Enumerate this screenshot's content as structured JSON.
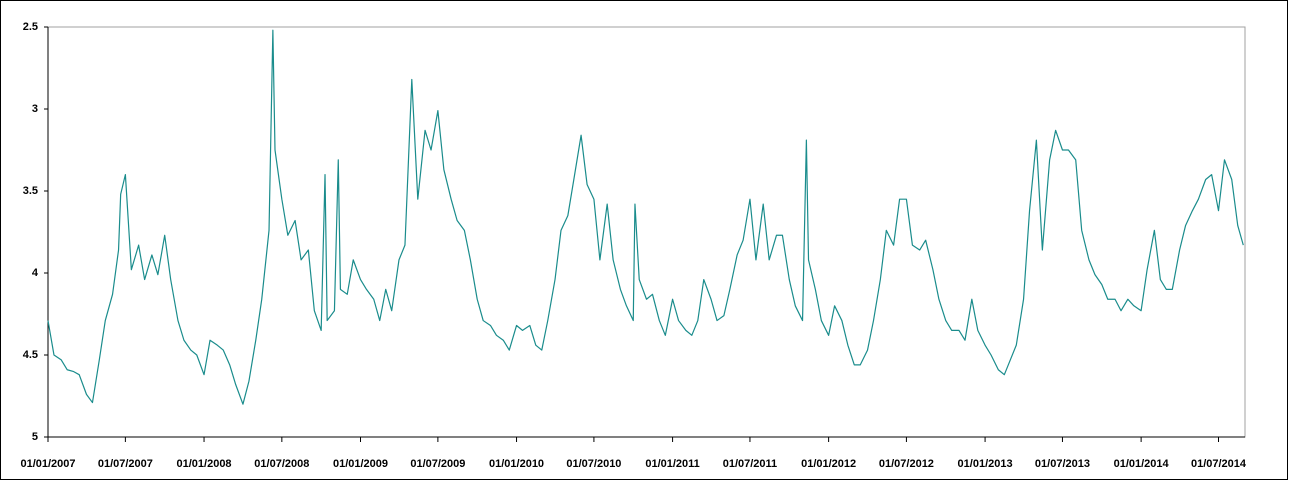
{
  "chart_data": {
    "type": "line",
    "x": [
      "01/01/2007",
      "15/01/2007",
      "01/02/2007",
      "15/02/2007",
      "01/03/2007",
      "15/03/2007",
      "01/04/2007",
      "15/04/2007",
      "01/05/2007",
      "15/05/2007",
      "01/06/2007",
      "15/06/2007",
      "20/06/2007",
      "01/07/2007",
      "15/07/2007",
      "01/08/2007",
      "15/08/2007",
      "01/09/2007",
      "15/09/2007",
      "01/10/2007",
      "15/10/2007",
      "01/11/2007",
      "15/11/2007",
      "01/12/2007",
      "15/12/2007",
      "01/01/2008",
      "15/01/2008",
      "01/02/2008",
      "15/02/2008",
      "01/03/2008",
      "15/03/2008",
      "01/04/2008",
      "15/04/2008",
      "01/05/2008",
      "15/05/2008",
      "01/06/2008",
      "10/06/2008",
      "15/06/2008",
      "01/07/2008",
      "15/07/2008",
      "01/08/2008",
      "15/08/2008",
      "01/09/2008",
      "15/09/2008",
      "01/10/2008",
      "10/10/2008",
      "15/10/2008",
      "01/11/2008",
      "10/11/2008",
      "15/11/2008",
      "01/12/2008",
      "15/12/2008",
      "01/01/2009",
      "15/01/2009",
      "01/02/2009",
      "15/02/2009",
      "01/03/2009",
      "15/03/2009",
      "01/04/2009",
      "15/04/2009",
      "01/05/2009",
      "15/05/2009",
      "01/06/2009",
      "15/06/2009",
      "01/07/2009",
      "15/07/2009",
      "01/08/2009",
      "15/08/2009",
      "01/09/2009",
      "15/09/2009",
      "01/10/2009",
      "15/10/2009",
      "01/11/2009",
      "15/11/2009",
      "01/12/2009",
      "15/12/2009",
      "01/01/2010",
      "15/01/2010",
      "01/02/2010",
      "15/02/2010",
      "01/03/2010",
      "15/03/2010",
      "01/04/2010",
      "15/04/2010",
      "01/05/2010",
      "15/05/2010",
      "01/06/2010",
      "15/06/2010",
      "01/07/2010",
      "15/07/2010",
      "01/08/2010",
      "15/08/2010",
      "01/09/2010",
      "15/09/2010",
      "01/10/2010",
      "05/10/2010",
      "15/10/2010",
      "01/11/2010",
      "15/11/2010",
      "01/12/2010",
      "15/12/2010",
      "01/01/2011",
      "15/01/2011",
      "01/02/2011",
      "15/02/2011",
      "01/03/2011",
      "15/03/2011",
      "01/04/2011",
      "15/04/2011",
      "01/05/2011",
      "15/05/2011",
      "01/06/2011",
      "15/06/2011",
      "01/07/2011",
      "15/07/2011",
      "01/08/2011",
      "15/08/2011",
      "01/09/2011",
      "15/09/2011",
      "01/10/2011",
      "15/10/2011",
      "01/11/2011",
      "10/11/2011",
      "15/11/2011",
      "01/12/2011",
      "15/12/2011",
      "01/01/2012",
      "15/01/2012",
      "01/02/2012",
      "15/02/2012",
      "01/03/2012",
      "15/03/2012",
      "01/04/2012",
      "15/04/2012",
      "01/05/2012",
      "15/05/2012",
      "01/06/2012",
      "15/06/2012",
      "01/07/2012",
      "15/07/2012",
      "01/08/2012",
      "15/08/2012",
      "01/09/2012",
      "15/09/2012",
      "01/10/2012",
      "15/10/2012",
      "01/11/2012",
      "15/11/2012",
      "01/12/2012",
      "15/12/2012",
      "01/01/2013",
      "15/01/2013",
      "01/02/2013",
      "15/02/2013",
      "01/03/2013",
      "15/03/2013",
      "01/04/2013",
      "15/04/2013",
      "01/05/2013",
      "15/05/2013",
      "01/06/2013",
      "15/06/2013",
      "01/07/2013",
      "15/07/2013",
      "01/08/2013",
      "15/08/2013",
      "01/09/2013",
      "15/09/2013",
      "01/10/2013",
      "15/10/2013",
      "01/11/2013",
      "15/11/2013",
      "01/12/2013",
      "15/12/2013",
      "01/01/2014",
      "15/01/2014",
      "01/02/2014",
      "15/02/2014",
      "01/03/2014",
      "15/03/2014",
      "01/04/2014",
      "15/04/2014",
      "01/05/2014",
      "15/05/2014",
      "01/06/2014",
      "15/06/2014",
      "01/07/2014",
      "15/07/2014",
      "01/08/2014",
      "15/08/2014",
      "28/08/2014"
    ],
    "values": [
      4.29,
      4.5,
      4.53,
      4.59,
      4.6,
      4.62,
      4.74,
      4.79,
      4.53,
      4.29,
      4.13,
      3.86,
      3.52,
      3.4,
      3.98,
      3.83,
      4.04,
      3.89,
      4.01,
      3.77,
      4.04,
      4.29,
      4.41,
      4.47,
      4.5,
      4.62,
      4.41,
      4.44,
      4.47,
      4.56,
      4.68,
      4.8,
      4.66,
      4.41,
      4.16,
      3.74,
      2.52,
      3.25,
      3.55,
      3.77,
      3.68,
      3.92,
      3.86,
      4.23,
      4.35,
      3.4,
      4.29,
      4.23,
      3.31,
      4.1,
      4.13,
      3.92,
      4.04,
      4.1,
      4.16,
      4.29,
      4.1,
      4.23,
      3.92,
      3.83,
      2.82,
      3.55,
      3.13,
      3.25,
      3.01,
      3.37,
      3.55,
      3.68,
      3.74,
      3.92,
      4.16,
      4.29,
      4.32,
      4.38,
      4.41,
      4.47,
      4.32,
      4.35,
      4.32,
      4.44,
      4.47,
      4.29,
      4.04,
      3.74,
      3.65,
      3.43,
      3.16,
      3.46,
      3.55,
      3.92,
      3.58,
      3.92,
      4.1,
      4.2,
      4.29,
      3.58,
      4.04,
      4.16,
      4.13,
      4.29,
      4.38,
      4.16,
      4.29,
      4.35,
      4.38,
      4.29,
      4.04,
      4.16,
      4.29,
      4.26,
      4.1,
      3.89,
      3.8,
      3.55,
      3.92,
      3.58,
      3.92,
      3.77,
      3.77,
      4.04,
      4.2,
      4.29,
      3.19,
      3.92,
      4.1,
      4.29,
      4.38,
      4.2,
      4.29,
      4.44,
      4.56,
      4.56,
      4.47,
      4.29,
      4.04,
      3.74,
      3.83,
      3.55,
      3.55,
      3.83,
      3.86,
      3.8,
      3.98,
      4.16,
      4.29,
      4.35,
      4.35,
      4.41,
      4.16,
      4.35,
      4.44,
      4.5,
      4.59,
      4.62,
      4.53,
      4.44,
      4.16,
      3.62,
      3.19,
      3.86,
      3.31,
      3.13,
      3.25,
      3.25,
      3.31,
      3.74,
      3.92,
      4.01,
      4.07,
      4.16,
      4.16,
      4.23,
      4.16,
      4.2,
      4.23,
      3.98,
      3.74,
      4.04,
      4.1,
      4.1,
      3.86,
      3.71,
      3.62,
      3.55,
      3.43,
      3.4,
      3.62,
      3.31,
      3.43,
      3.71,
      3.83
    ],
    "color": "#1a8c8c",
    "xlim": [
      "01/01/2007",
      "01/09/2014"
    ],
    "xticks": [
      "01/01/2007",
      "01/07/2007",
      "01/01/2008",
      "01/07/2008",
      "01/01/2009",
      "01/07/2009",
      "01/01/2010",
      "01/07/2010",
      "01/01/2011",
      "01/07/2011",
      "01/01/2012",
      "01/07/2012",
      "01/01/2013",
      "01/07/2013",
      "01/01/2014",
      "01/07/2014"
    ],
    "ylim": [
      5,
      2.5
    ],
    "yticks": [
      2.5,
      3,
      3.5,
      4,
      4.5,
      5
    ],
    "grid": false
  }
}
